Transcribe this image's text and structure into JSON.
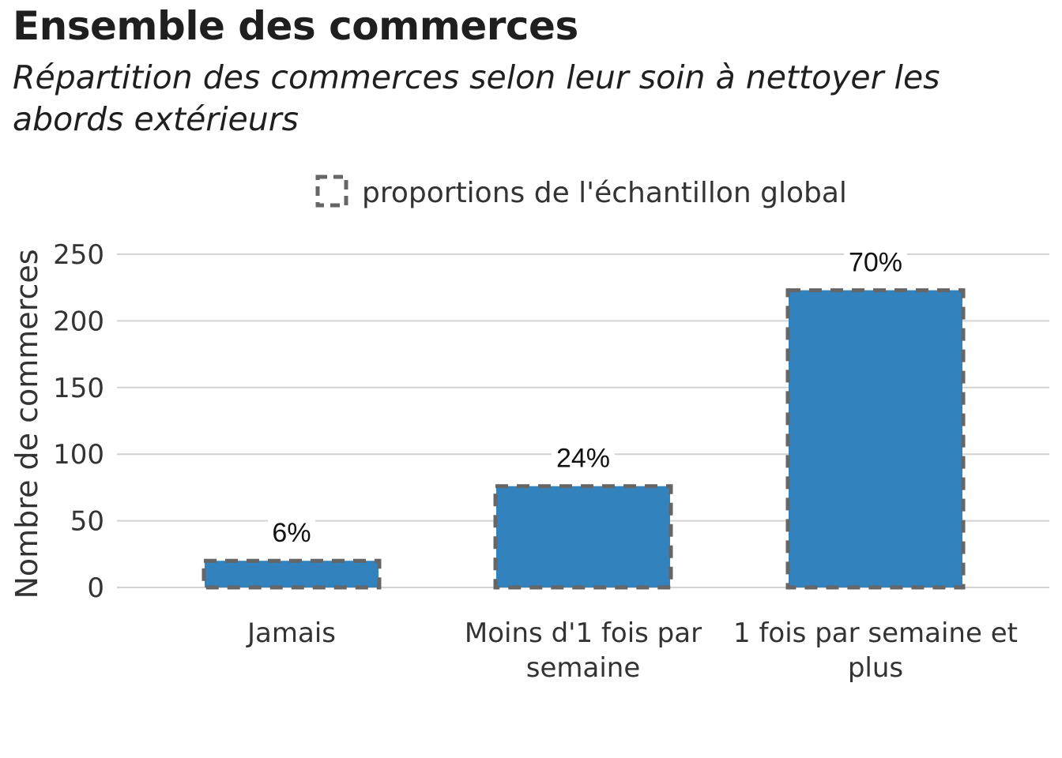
{
  "title": "Ensemble des commerces",
  "subtitle": "Répartition des commerces selon leur soin à nettoyer les abords extérieurs",
  "chart_data": {
    "type": "bar",
    "categories": [
      [
        "Jamais"
      ],
      [
        "Moins d'1 fois par",
        "semaine"
      ],
      [
        "1 fois par semaine et",
        "plus"
      ]
    ],
    "values": [
      20,
      76,
      223
    ],
    "data_labels": [
      "6%",
      "24%",
      "70%"
    ],
    "reference_values": [
      20,
      76,
      223
    ],
    "ylabel": "Nombre de commerces",
    "xlabel": "",
    "ylim": [
      0,
      250
    ],
    "yticks": [
      0,
      50,
      100,
      150,
      200,
      250
    ],
    "legend": {
      "label": "proportions de l'échantillon global",
      "position": "top"
    },
    "grid": true,
    "colors": {
      "bar": "#3182bd",
      "reference_outline": "#666666",
      "grid": "#d3d3d3"
    }
  }
}
